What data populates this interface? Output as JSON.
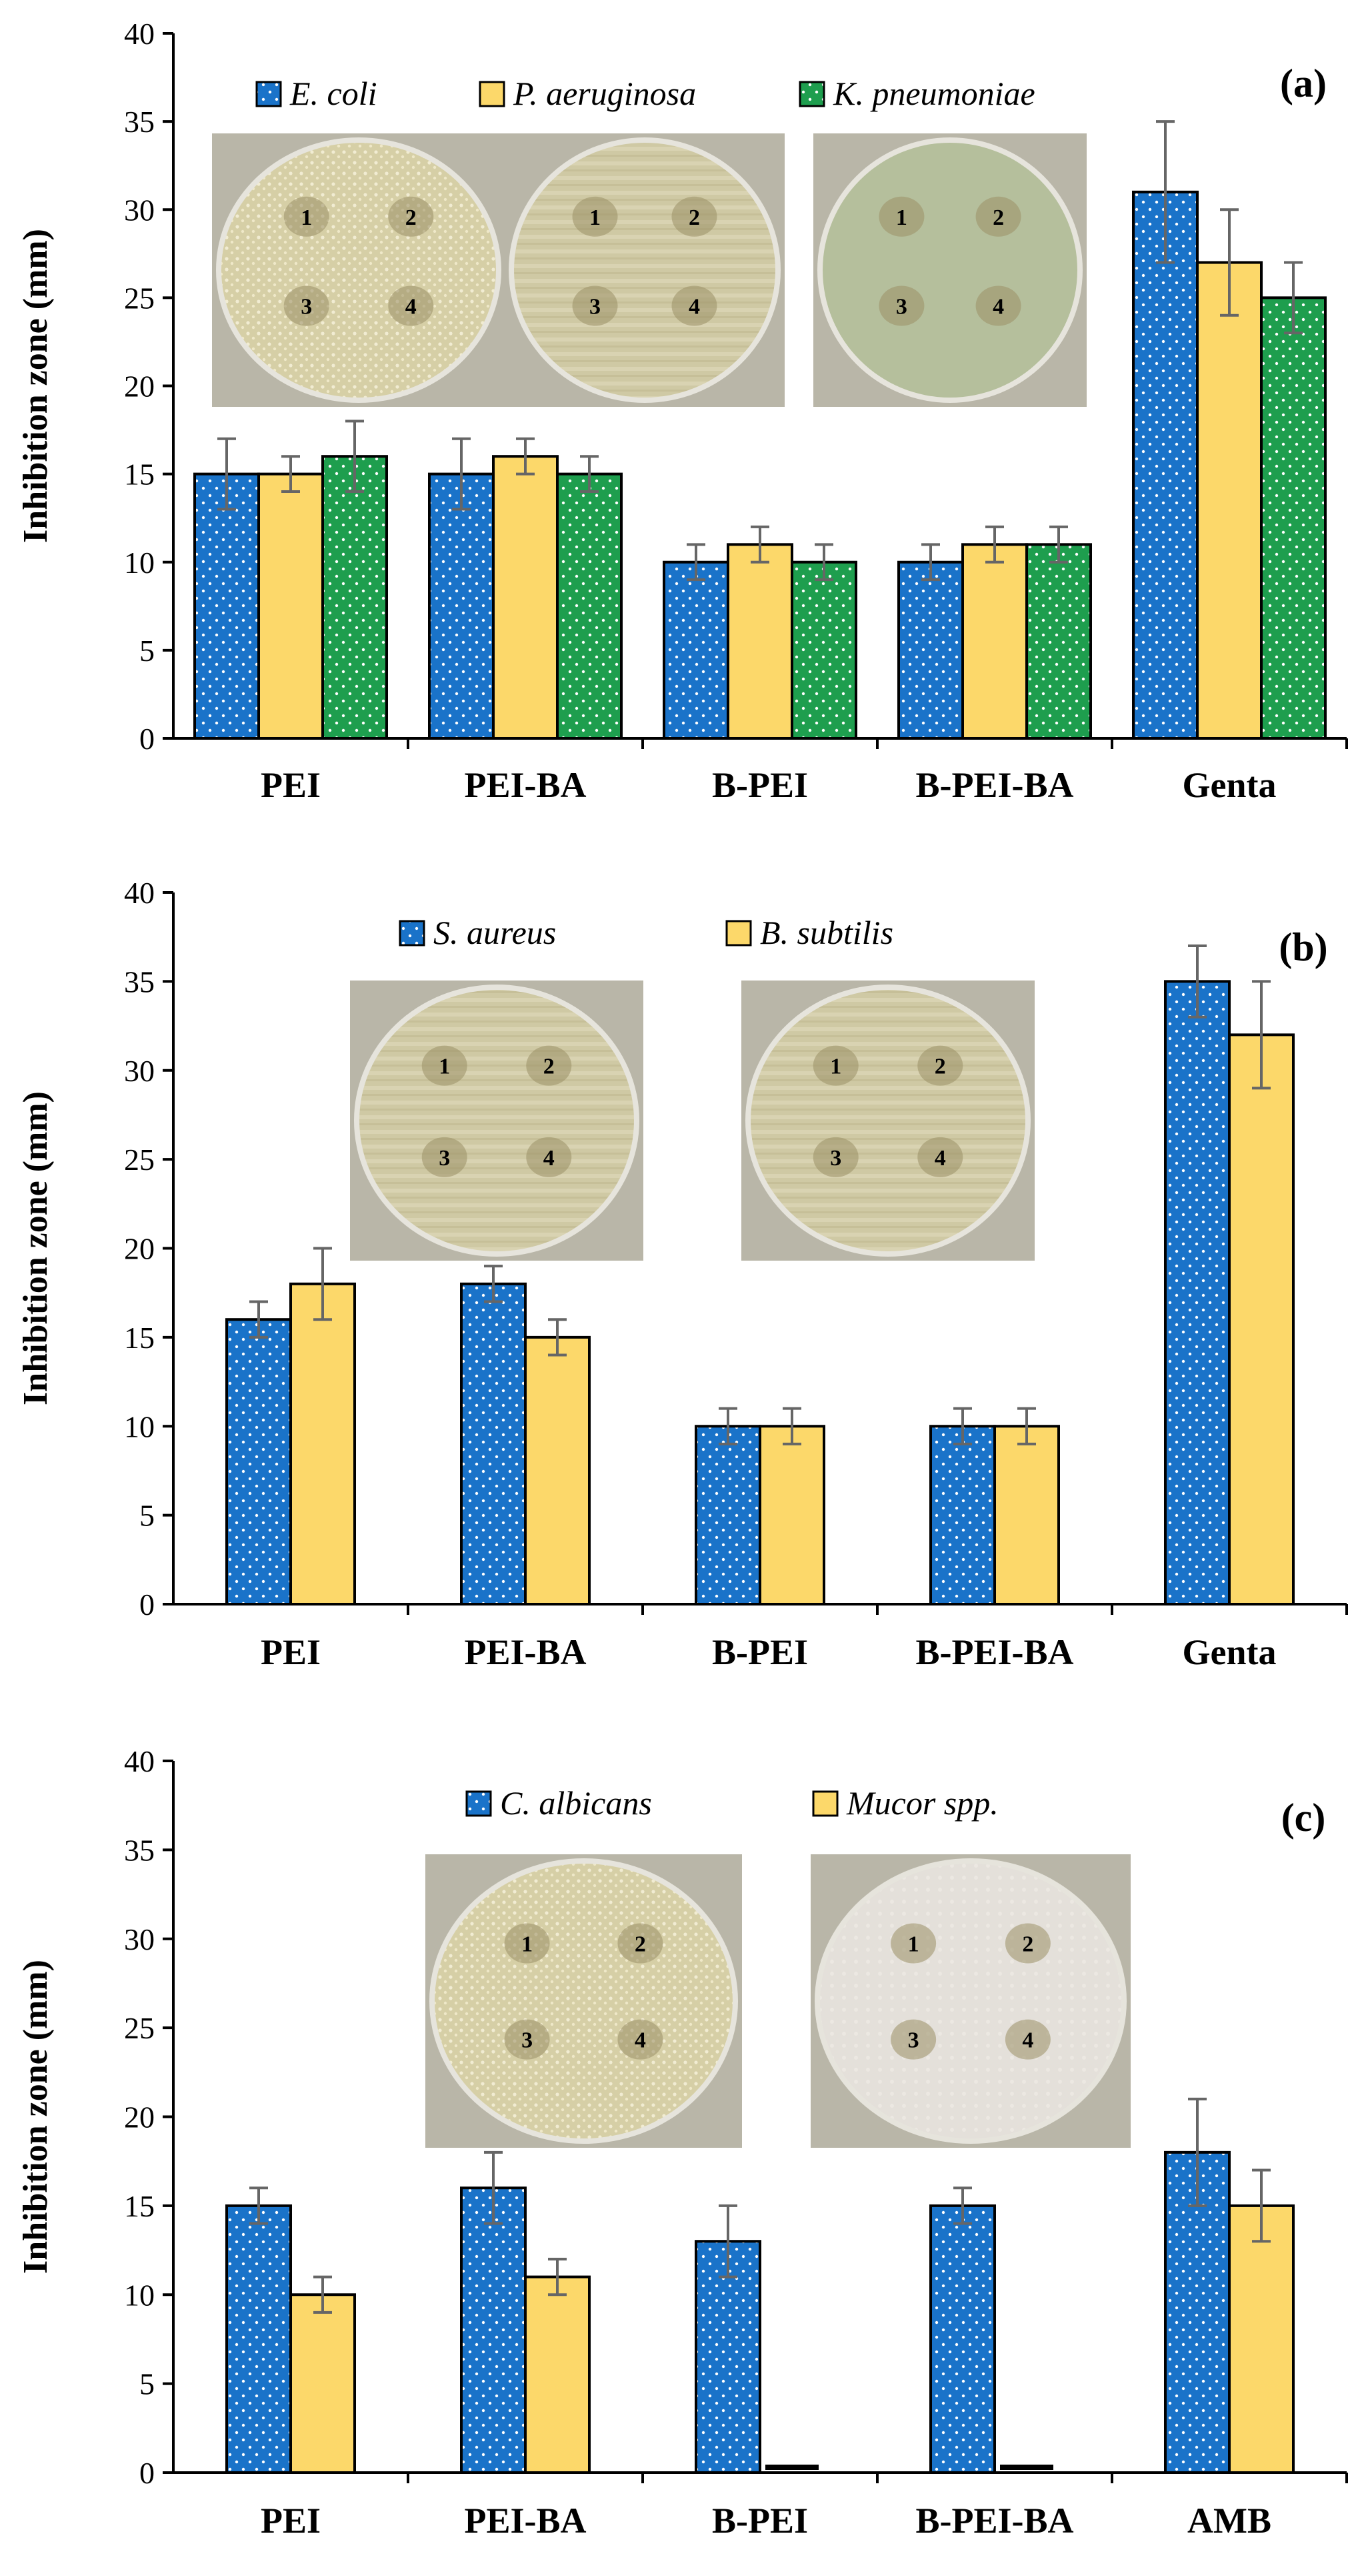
{
  "colors": {
    "blue": "#1a73c9",
    "yellow": "#fcd86a",
    "green": "#1e9e4e",
    "axis": "#000000",
    "error_bar": "#666666",
    "photo_plate": "#d9d2ae",
    "photo_bg": "#b9b6a8"
  },
  "chart_data": [
    {
      "type": "bar",
      "panel_label": "(a)",
      "ylabel": "Inhibition zone (mm)",
      "ylim": [
        0,
        40
      ],
      "yticks": [
        "0",
        "5",
        "10",
        "15",
        "20",
        "25",
        "30",
        "35",
        "40"
      ],
      "categories": [
        "PEI",
        "PEI-BA",
        "B-PEI",
        "B-PEI-BA",
        "Genta"
      ],
      "legend_position": "top",
      "series": [
        {
          "name": "E. coli",
          "color": "blue",
          "values": [
            15,
            15,
            10,
            10,
            31
          ],
          "errors": [
            2,
            2,
            1,
            1,
            4
          ]
        },
        {
          "name": "P. aeruginosa",
          "color": "yellow",
          "values": [
            15,
            16,
            11,
            11,
            27
          ],
          "errors": [
            1,
            1,
            1,
            1,
            3
          ]
        },
        {
          "name": "K. pneumoniae",
          "color": "green",
          "values": [
            16,
            15,
            10,
            11,
            25
          ],
          "errors": [
            2,
            1,
            1,
            1,
            2
          ]
        }
      ],
      "photos": [
        {
          "icon": "agar-plate-image",
          "well_labels": [
            "1",
            "2",
            "3",
            "4"
          ],
          "texture": "dotted"
        },
        {
          "icon": "agar-plate-image",
          "well_labels": [
            "1",
            "2",
            "3",
            "4"
          ],
          "texture": "streaked"
        },
        {
          "icon": "agar-plate-image",
          "well_labels": [
            "1",
            "2",
            "3",
            "4"
          ],
          "texture": "smooth-green"
        }
      ]
    },
    {
      "type": "bar",
      "panel_label": "(b)",
      "ylabel": "Inhibition zone (mm)",
      "ylim": [
        0,
        40
      ],
      "yticks": [
        "0",
        "5",
        "10",
        "15",
        "20",
        "25",
        "30",
        "35",
        "40"
      ],
      "categories": [
        "PEI",
        "PEI-BA",
        "B-PEI",
        "B-PEI-BA",
        "Genta"
      ],
      "legend_position": "top",
      "series": [
        {
          "name": "S. aureus",
          "color": "blue",
          "values": [
            16,
            18,
            10,
            10,
            35
          ],
          "errors": [
            1,
            1,
            1,
            1,
            2
          ]
        },
        {
          "name": "B. subtilis",
          "color": "yellow",
          "values": [
            18,
            15,
            10,
            10,
            32
          ],
          "errors": [
            2,
            1,
            1,
            1,
            3
          ]
        }
      ],
      "photos": [
        {
          "icon": "agar-plate-image",
          "well_labels": [
            "1",
            "2",
            "3",
            "4"
          ],
          "texture": "streaked"
        },
        {
          "icon": "agar-plate-image",
          "well_labels": [
            "1",
            "2",
            "3",
            "4"
          ],
          "texture": "streaked"
        }
      ]
    },
    {
      "type": "bar",
      "panel_label": "(c)",
      "ylabel": "Inhibition zone (mm)",
      "ylim": [
        0,
        40
      ],
      "yticks": [
        "0",
        "5",
        "10",
        "15",
        "20",
        "25",
        "30",
        "35",
        "40"
      ],
      "categories": [
        "PEI",
        "PEI-BA",
        "B-PEI",
        "B-PEI-BA",
        "AMB"
      ],
      "legend_position": "top",
      "series": [
        {
          "name": "C. albicans",
          "color": "blue",
          "values": [
            15,
            16,
            13,
            15,
            18
          ],
          "errors": [
            1,
            2,
            2,
            1,
            3
          ]
        },
        {
          "name": "Mucor spp.",
          "color": "yellow",
          "values": [
            10,
            11,
            0,
            0,
            15
          ],
          "errors": [
            1,
            1,
            0,
            0,
            2
          ]
        }
      ],
      "photos": [
        {
          "icon": "agar-plate-image",
          "well_labels": [
            "1",
            "2",
            "3",
            "4"
          ],
          "texture": "dotted"
        },
        {
          "icon": "agar-plate-image",
          "well_labels": [
            "1",
            "2",
            "3",
            "4"
          ],
          "texture": "fuzzy-white"
        }
      ]
    }
  ]
}
